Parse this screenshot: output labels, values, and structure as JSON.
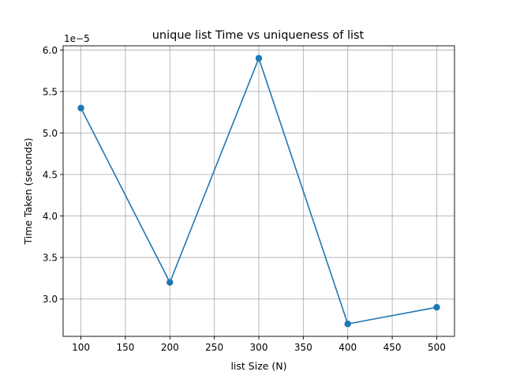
{
  "chart_data": {
    "type": "line",
    "title": "unique list Time vs uniqueness of list",
    "xlabel": "list Size (N)",
    "ylabel": "Time Taken (seconds)",
    "y_offset_label": "1e−5",
    "xlim": [
      80,
      520
    ],
    "ylim": [
      2.55,
      6.05
    ],
    "x_ticks": [
      100,
      150,
      200,
      250,
      300,
      350,
      400,
      450,
      500
    ],
    "y_ticks": [
      3.0,
      3.5,
      4.0,
      4.5,
      5.0,
      5.5,
      6.0
    ],
    "y_tick_labels": [
      "3.0",
      "3.5",
      "4.0",
      "4.5",
      "5.0",
      "5.5",
      "6.0"
    ],
    "grid": true,
    "series": [
      {
        "x": [
          100,
          200,
          300,
          400,
          500
        ],
        "y": [
          5.3,
          3.2,
          5.9,
          2.7,
          2.9
        ],
        "color": "#1f77b4",
        "marker": "circle"
      }
    ]
  }
}
